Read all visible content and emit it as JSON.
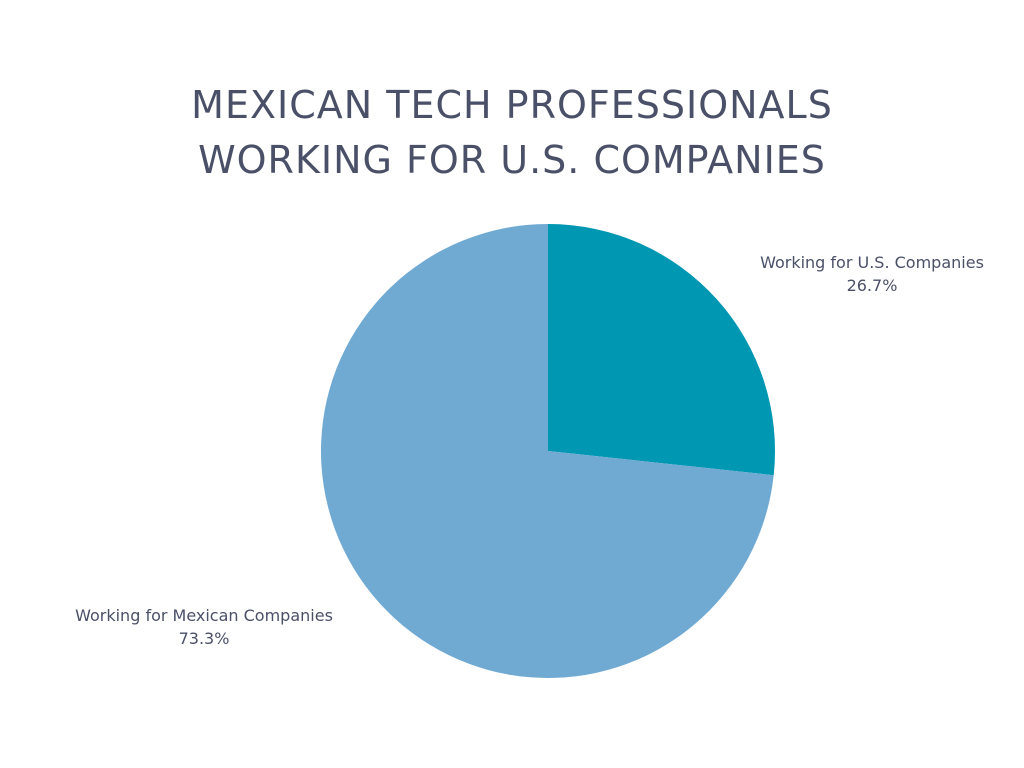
{
  "chart_data": {
    "type": "pie",
    "title": [
      "MEXICAN TECH PROFESSIONALS",
      "WORKING FOR U.S. COMPANIES"
    ],
    "slices": [
      {
        "label": "Working for U.S. Companies",
        "value": 26.7,
        "value_label": "26.7%",
        "color": "#0097b2"
      },
      {
        "label": "Working for Mexican Companies",
        "value": 73.3,
        "value_label": "73.3%",
        "color": "#70aad3"
      }
    ],
    "start_angle_deg": 0,
    "direction": "clockwise",
    "legend": "none"
  }
}
